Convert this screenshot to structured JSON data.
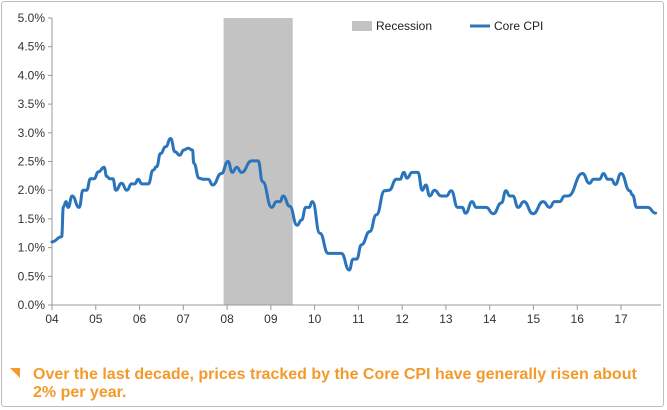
{
  "chart_data": {
    "type": "line",
    "title": "",
    "xlabel": "",
    "ylabel": "",
    "ylim": [
      0,
      5
    ],
    "xlim": [
      2004,
      2017.95
    ],
    "y_ticks": [
      "0.0%",
      "0.5%",
      "1.0%",
      "1.5%",
      "2.0%",
      "2.5%",
      "3.0%",
      "3.5%",
      "4.0%",
      "4.5%",
      "5.0%"
    ],
    "x_ticks": [
      "04",
      "05",
      "06",
      "07",
      "08",
      "09",
      "10",
      "11",
      "12",
      "13",
      "14",
      "15",
      "16",
      "17"
    ],
    "grid": false,
    "legend_position": "top-right",
    "colors": {
      "line": "#2a74bb",
      "recession": "#c3c3c3",
      "note": "#f39a2b"
    },
    "recession": {
      "name": "Recession",
      "start": 2007.92,
      "end": 2009.5
    },
    "series": [
      {
        "name": "Core CPI",
        "points": [
          [
            2004.0,
            1.1
          ],
          [
            2004.22,
            1.19
          ],
          [
            2004.26,
            1.71
          ],
          [
            2004.32,
            1.8
          ],
          [
            2004.37,
            1.7
          ],
          [
            2004.46,
            1.9
          ],
          [
            2004.62,
            1.7
          ],
          [
            2004.71,
            2.0
          ],
          [
            2004.79,
            2.0
          ],
          [
            2004.88,
            2.2
          ],
          [
            2004.96,
            2.2
          ],
          [
            2005.06,
            2.32
          ],
          [
            2005.19,
            2.4
          ],
          [
            2005.25,
            2.24
          ],
          [
            2005.32,
            2.2
          ],
          [
            2005.39,
            2.2
          ],
          [
            2005.46,
            2.0
          ],
          [
            2005.59,
            2.12
          ],
          [
            2005.71,
            2.0
          ],
          [
            2005.82,
            2.11
          ],
          [
            2005.89,
            2.11
          ],
          [
            2005.97,
            2.19
          ],
          [
            2006.05,
            2.11
          ],
          [
            2006.2,
            2.11
          ],
          [
            2006.31,
            2.35
          ],
          [
            2006.39,
            2.41
          ],
          [
            2006.48,
            2.64
          ],
          [
            2006.6,
            2.76
          ],
          [
            2006.71,
            2.9
          ],
          [
            2006.81,
            2.67
          ],
          [
            2006.92,
            2.61
          ],
          [
            2007.01,
            2.7
          ],
          [
            2007.11,
            2.73
          ],
          [
            2007.21,
            2.7
          ],
          [
            2007.24,
            2.47
          ],
          [
            2007.36,
            2.21
          ],
          [
            2007.45,
            2.19
          ],
          [
            2007.57,
            2.19
          ],
          [
            2007.67,
            2.09
          ],
          [
            2007.87,
            2.29
          ],
          [
            2008.02,
            2.5
          ],
          [
            2008.12,
            2.31
          ],
          [
            2008.22,
            2.4
          ],
          [
            2008.33,
            2.31
          ],
          [
            2008.56,
            2.51
          ],
          [
            2008.71,
            2.51
          ],
          [
            2008.81,
            2.15
          ],
          [
            2009.02,
            1.7
          ],
          [
            2009.13,
            1.8
          ],
          [
            2009.21,
            1.8
          ],
          [
            2009.28,
            1.9
          ],
          [
            2009.43,
            1.72
          ],
          [
            2009.6,
            1.39
          ],
          [
            2009.7,
            1.48
          ],
          [
            2009.8,
            1.7
          ],
          [
            2009.87,
            1.7
          ],
          [
            2009.95,
            1.8
          ],
          [
            2010.12,
            1.25
          ],
          [
            2010.31,
            0.9
          ],
          [
            2010.61,
            0.9
          ],
          [
            2010.79,
            0.61
          ],
          [
            2010.88,
            0.8
          ],
          [
            2010.96,
            0.8
          ],
          [
            2011.07,
            1.05
          ],
          [
            2011.26,
            1.28
          ],
          [
            2011.41,
            1.57
          ],
          [
            2011.6,
            1.99
          ],
          [
            2011.7,
            2.0
          ],
          [
            2011.87,
            2.19
          ],
          [
            2011.95,
            2.19
          ],
          [
            2012.04,
            2.31
          ],
          [
            2012.11,
            2.21
          ],
          [
            2012.23,
            2.31
          ],
          [
            2012.36,
            2.31
          ],
          [
            2012.46,
            2.0
          ],
          [
            2012.54,
            2.09
          ],
          [
            2012.63,
            1.9
          ],
          [
            2012.74,
            2.0
          ],
          [
            2012.89,
            1.9
          ],
          [
            2013.01,
            1.9
          ],
          [
            2013.12,
            1.99
          ],
          [
            2013.27,
            1.7
          ],
          [
            2013.37,
            1.7
          ],
          [
            2013.45,
            1.6
          ],
          [
            2013.6,
            1.8
          ],
          [
            2013.69,
            1.7
          ],
          [
            2013.92,
            1.7
          ],
          [
            2014.08,
            1.59
          ],
          [
            2014.27,
            1.78
          ],
          [
            2014.37,
            1.99
          ],
          [
            2014.46,
            1.9
          ],
          [
            2014.53,
            1.9
          ],
          [
            2014.65,
            1.7
          ],
          [
            2014.78,
            1.8
          ],
          [
            2014.99,
            1.59
          ],
          [
            2015.22,
            1.8
          ],
          [
            2015.37,
            1.7
          ],
          [
            2015.48,
            1.8
          ],
          [
            2015.6,
            1.8
          ],
          [
            2015.71,
            1.9
          ],
          [
            2015.79,
            1.9
          ],
          [
            2016.12,
            2.29
          ],
          [
            2016.28,
            2.12
          ],
          [
            2016.37,
            2.19
          ],
          [
            2016.51,
            2.19
          ],
          [
            2016.6,
            2.29
          ],
          [
            2016.7,
            2.19
          ],
          [
            2016.78,
            2.19
          ],
          [
            2016.87,
            2.1
          ],
          [
            2017.0,
            2.29
          ],
          [
            2017.2,
            1.99
          ],
          [
            2017.26,
            1.92
          ],
          [
            2017.36,
            1.7
          ],
          [
            2017.61,
            1.7
          ],
          [
            2017.79,
            1.6
          ]
        ]
      }
    ]
  },
  "note": {
    "icon": "orange-corner-triangle-icon",
    "text": "Over the last decade, prices tracked by the Core CPI have generally risen about 2% per year."
  }
}
